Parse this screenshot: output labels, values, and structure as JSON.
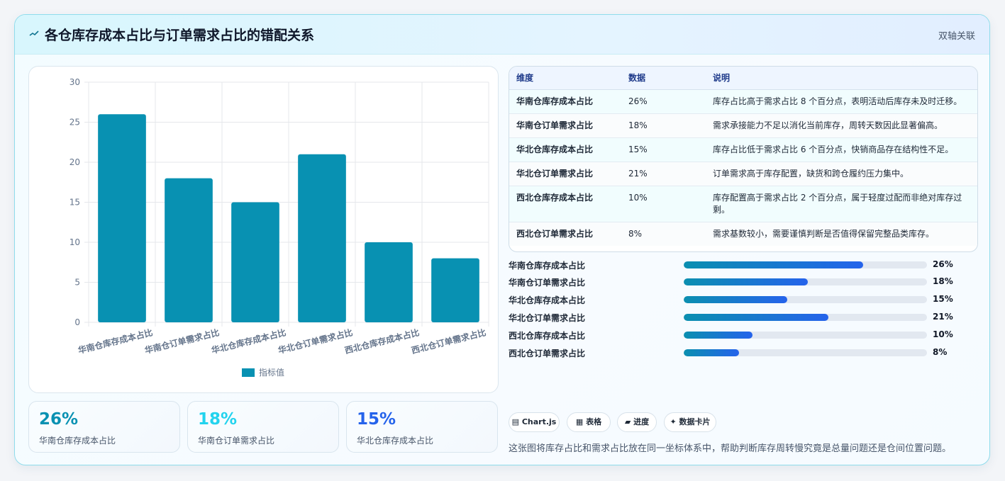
{
  "header": {
    "title": "各仓库存成本占比与订单需求占比的错配关系",
    "badge": "双轴关联"
  },
  "chart_data": {
    "type": "bar",
    "categories": [
      "华南仓库存成本占比",
      "华南仓订单需求占比",
      "华北仓库存成本占比",
      "华北仓订单需求占比",
      "西北仓库存成本占比",
      "西北仓订单需求占比"
    ],
    "series": [
      {
        "name": "指标值",
        "values": [
          26,
          18,
          15,
          21,
          10,
          8
        ]
      }
    ],
    "ylim": [
      0,
      30
    ],
    "yticks": [
      0,
      5,
      10,
      15,
      20,
      25,
      30
    ],
    "grid": true,
    "legend": "bottom",
    "bar_color": "#0891b2"
  },
  "kpis": [
    {
      "value": "26%",
      "label": "华南仓库存成本占比",
      "color": "#0891b2"
    },
    {
      "value": "18%",
      "label": "华南仓订单需求占比",
      "color": "#22d3ee"
    },
    {
      "value": "15%",
      "label": "华北仓库存成本占比",
      "color": "#2563eb"
    }
  ],
  "table": {
    "headers": [
      "维度",
      "数据",
      "说明"
    ],
    "rows": [
      [
        "华南仓库存成本占比",
        "26%",
        "库存占比高于需求占比 8 个百分点，表明活动后库存未及时迁移。"
      ],
      [
        "华南仓订单需求占比",
        "18%",
        "需求承接能力不足以消化当前库存，周转天数因此显著偏高。"
      ],
      [
        "华北仓库存成本占比",
        "15%",
        "库存占比低于需求占比 6 个百分点，快销商品存在结构性不足。"
      ],
      [
        "华北仓订单需求占比",
        "21%",
        "订单需求高于库存配置，缺货和跨仓履约压力集中。"
      ],
      [
        "西北仓库存成本占比",
        "10%",
        "库存配置高于需求占比 2 个百分点，属于轻度过配而非绝对库存过剩。"
      ],
      [
        "西北仓订单需求占比",
        "8%",
        "需求基数较小，需要谨慎判断是否值得保留完整品类库存。"
      ]
    ]
  },
  "progress": [
    {
      "label": "华南仓库存成本占比",
      "value": 26,
      "text": "26%"
    },
    {
      "label": "华南仓订单需求占比",
      "value": 18,
      "text": "18%"
    },
    {
      "label": "华北仓库存成本占比",
      "value": 15,
      "text": "15%"
    },
    {
      "label": "华北仓订单需求占比",
      "value": 21,
      "text": "21%"
    },
    {
      "label": "西北仓库存成本占比",
      "value": 10,
      "text": "10%"
    },
    {
      "label": "西北仓订单需求占比",
      "value": 8,
      "text": "8%"
    }
  ],
  "chips": [
    {
      "icon": "chart-icon",
      "label": "▤ Chart.js"
    },
    {
      "icon": "table-icon",
      "label": "▦ 表格"
    },
    {
      "icon": "progress-icon",
      "label": "▰ 进度"
    },
    {
      "icon": "sparkle-icon",
      "label": "✦ 数据卡片"
    }
  ],
  "footer": "这张图将库存占比和需求占比放在同一坐标体系中，帮助判断库存周转慢究竟是总量问题还是仓间位置问题。"
}
